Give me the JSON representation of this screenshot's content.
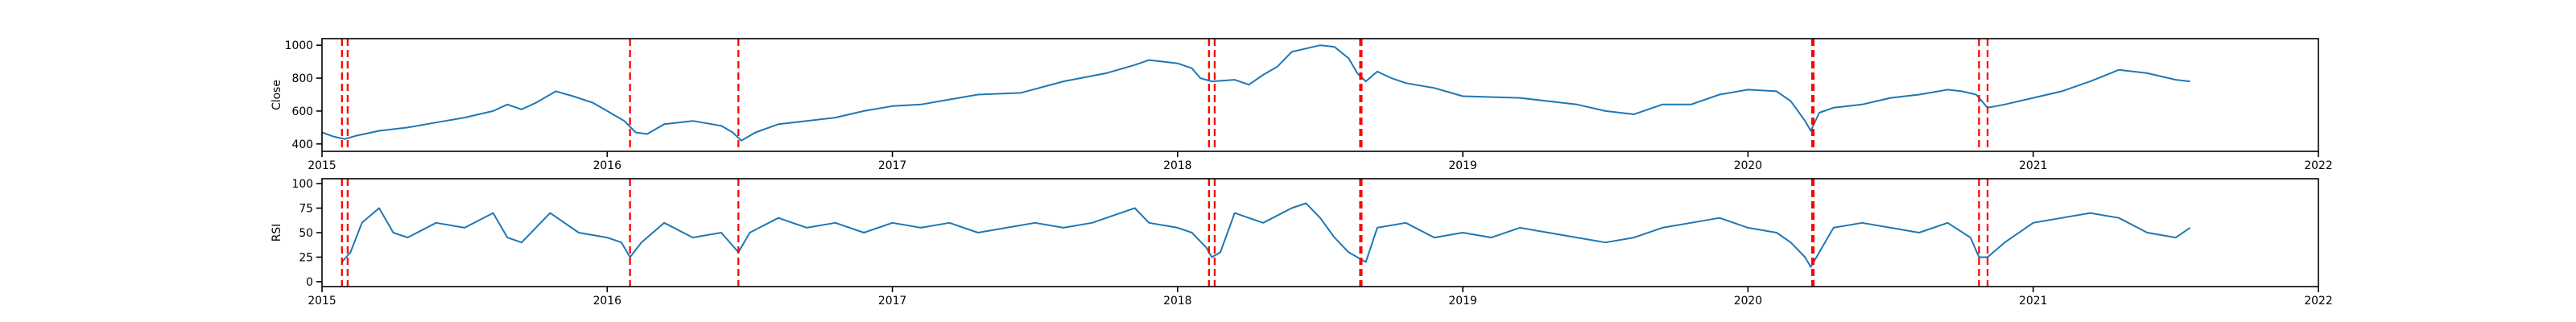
{
  "colors": {
    "series": "#1f77b4",
    "event": "#ff0000"
  },
  "chart_data": [
    {
      "id": "close",
      "type": "line",
      "ylabel": "Close",
      "xlim": [
        2015.0,
        2022.0
      ],
      "ylim": [
        355,
        1040
      ],
      "x_ticks": [
        "2015",
        "2016",
        "2017",
        "2018",
        "2019",
        "2020",
        "2021",
        "2022"
      ],
      "y_ticks": [
        400,
        600,
        800,
        1000
      ],
      "series": [
        {
          "x": [
            2015.0,
            2015.04,
            2015.08,
            2015.12,
            2015.2,
            2015.3,
            2015.4,
            2015.5,
            2015.6,
            2015.65,
            2015.7,
            2015.75,
            2015.82,
            2015.88,
            2015.95,
            2016.0,
            2016.06,
            2016.1,
            2016.14,
            2016.2,
            2016.3,
            2016.4,
            2016.44,
            2016.47,
            2016.52,
            2016.6,
            2016.7,
            2016.8,
            2016.9,
            2017.0,
            2017.1,
            2017.2,
            2017.3,
            2017.45,
            2017.6,
            2017.75,
            2017.85,
            2017.9,
            2017.95,
            2018.0,
            2018.05,
            2018.08,
            2018.12,
            2018.2,
            2018.25,
            2018.3,
            2018.35,
            2018.4,
            2018.45,
            2018.5,
            2018.55,
            2018.6,
            2018.63,
            2018.66,
            2018.7,
            2018.75,
            2018.8,
            2018.9,
            2019.0,
            2019.2,
            2019.4,
            2019.5,
            2019.6,
            2019.7,
            2019.8,
            2019.9,
            2020.0,
            2020.1,
            2020.15,
            2020.2,
            2020.22,
            2020.25,
            2020.3,
            2020.4,
            2020.5,
            2020.6,
            2020.7,
            2020.75,
            2020.8,
            2020.84,
            2020.9,
            2021.0,
            2021.1,
            2021.2,
            2021.3,
            2021.4,
            2021.5,
            2021.55
          ],
          "values": [
            470,
            445,
            430,
            450,
            480,
            500,
            530,
            560,
            600,
            640,
            610,
            650,
            720,
            690,
            650,
            600,
            540,
            470,
            460,
            520,
            540,
            510,
            470,
            420,
            470,
            520,
            540,
            560,
            600,
            630,
            640,
            670,
            700,
            710,
            780,
            830,
            880,
            910,
            900,
            890,
            860,
            800,
            780,
            790,
            760,
            820,
            870,
            960,
            980,
            1000,
            990,
            920,
            830,
            780,
            840,
            800,
            770,
            740,
            690,
            680,
            640,
            600,
            580,
            640,
            640,
            700,
            730,
            720,
            660,
            540,
            480,
            590,
            620,
            640,
            680,
            700,
            730,
            720,
            700,
            620,
            640,
            680,
            720,
            780,
            850,
            830,
            790,
            780
          ]
        }
      ],
      "event_lines": [
        2015.07,
        2015.09,
        2016.08,
        2016.46,
        2018.11,
        2018.13,
        2018.64,
        2018.645,
        2020.225,
        2020.23,
        2020.81,
        2020.84
      ]
    },
    {
      "id": "rsi",
      "type": "line",
      "ylabel": "RSI",
      "xlim": [
        2015.0,
        2022.0
      ],
      "ylim": [
        -5,
        105
      ],
      "x_ticks": [
        "2015",
        "2016",
        "2017",
        "2018",
        "2019",
        "2020",
        "2021",
        "2022"
      ],
      "y_ticks": [
        0,
        25,
        50,
        75,
        100
      ],
      "series": [
        {
          "x": [
            2015.07,
            2015.1,
            2015.14,
            2015.2,
            2015.25,
            2015.3,
            2015.4,
            2015.5,
            2015.6,
            2015.65,
            2015.7,
            2015.8,
            2015.9,
            2016.0,
            2016.05,
            2016.08,
            2016.12,
            2016.2,
            2016.3,
            2016.4,
            2016.46,
            2016.5,
            2016.6,
            2016.7,
            2016.8,
            2016.9,
            2017.0,
            2017.1,
            2017.2,
            2017.3,
            2017.4,
            2017.5,
            2017.6,
            2017.7,
            2017.8,
            2017.85,
            2017.9,
            2018.0,
            2018.05,
            2018.1,
            2018.12,
            2018.15,
            2018.2,
            2018.3,
            2018.4,
            2018.45,
            2018.5,
            2018.55,
            2018.6,
            2018.63,
            2018.66,
            2018.7,
            2018.8,
            2018.9,
            2019.0,
            2019.1,
            2019.2,
            2019.3,
            2019.4,
            2019.5,
            2019.6,
            2019.7,
            2019.8,
            2019.9,
            2020.0,
            2020.1,
            2020.15,
            2020.2,
            2020.22,
            2020.25,
            2020.3,
            2020.4,
            2020.5,
            2020.6,
            2020.7,
            2020.78,
            2020.81,
            2020.84,
            2020.9,
            2021.0,
            2021.1,
            2021.2,
            2021.3,
            2021.4,
            2021.5,
            2021.55
          ],
          "values": [
            20,
            30,
            60,
            75,
            50,
            45,
            60,
            55,
            70,
            45,
            40,
            70,
            50,
            45,
            40,
            25,
            40,
            60,
            45,
            50,
            30,
            50,
            65,
            55,
            60,
            50,
            60,
            55,
            60,
            50,
            55,
            60,
            55,
            60,
            70,
            75,
            60,
            55,
            50,
            35,
            25,
            30,
            70,
            60,
            75,
            80,
            65,
            45,
            30,
            25,
            20,
            55,
            60,
            45,
            50,
            45,
            55,
            50,
            45,
            40,
            45,
            55,
            60,
            65,
            55,
            50,
            40,
            25,
            15,
            30,
            55,
            60,
            55,
            50,
            60,
            45,
            25,
            25,
            40,
            60,
            65,
            70,
            65,
            50,
            45,
            55
          ]
        }
      ],
      "event_lines": [
        2015.07,
        2015.09,
        2016.08,
        2016.46,
        2018.11,
        2018.13,
        2018.64,
        2018.645,
        2020.225,
        2020.23,
        2020.81,
        2020.84
      ]
    }
  ]
}
